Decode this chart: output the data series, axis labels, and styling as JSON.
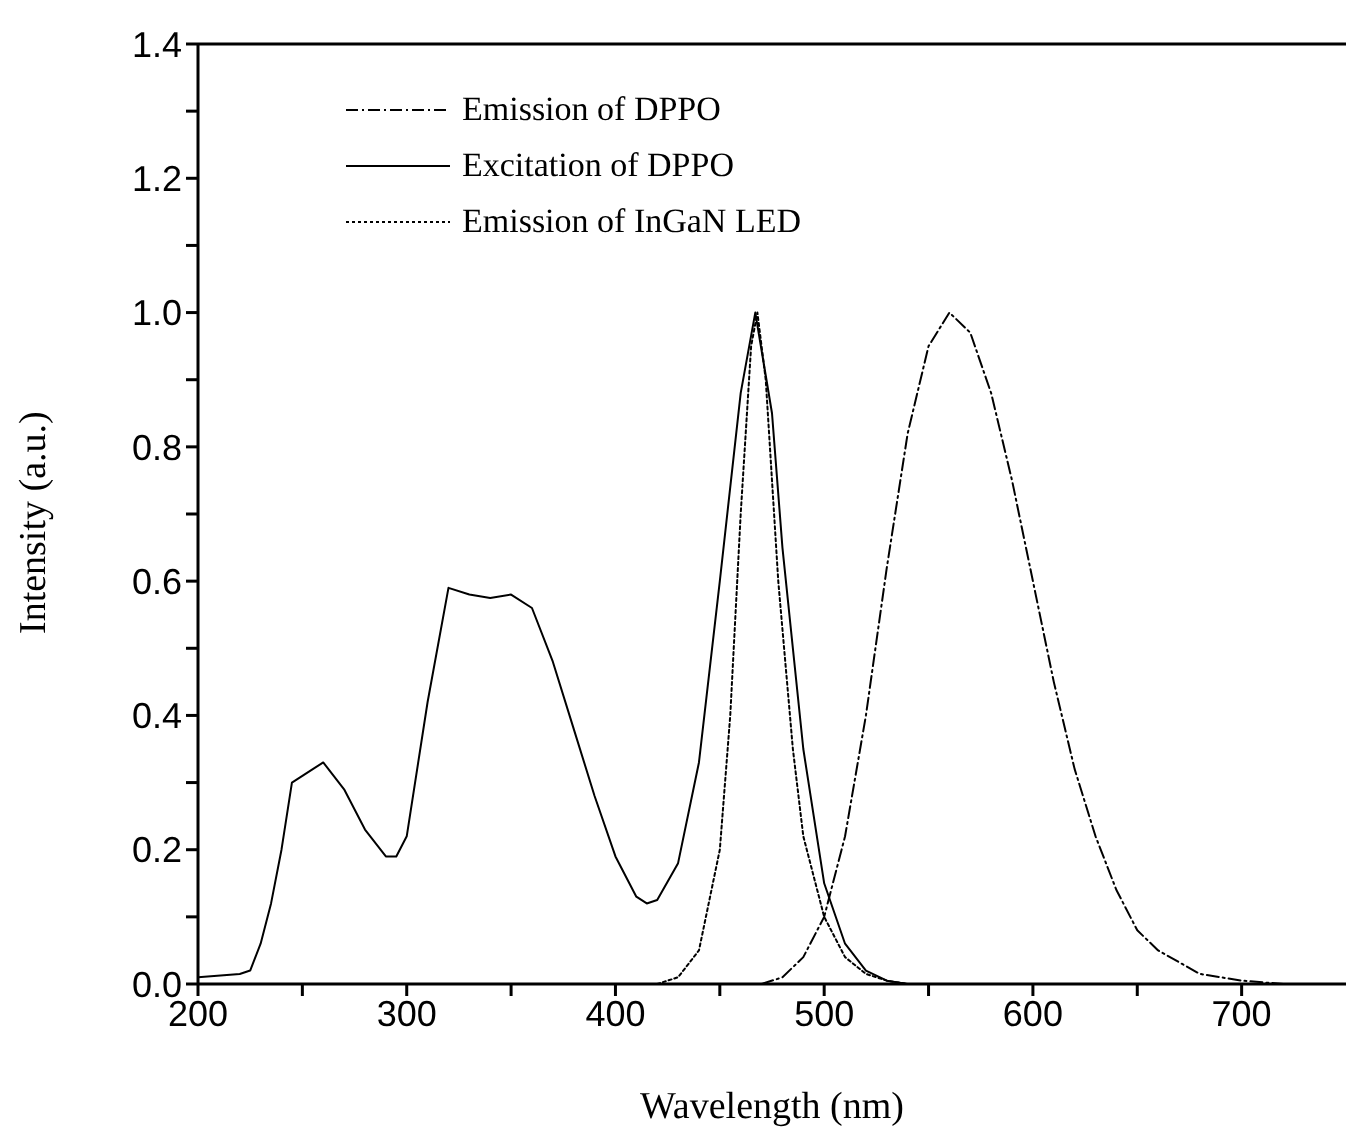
{
  "chart_data": {
    "type": "line",
    "xlabel": "Wavelength (nm)",
    "ylabel": "Intensity (a.u.)",
    "xlim": [
      200,
      750
    ],
    "xticks": [
      200,
      {
        "value": 250,
        "label": null
      },
      300,
      {
        "value": 350,
        "label": null
      },
      400,
      {
        "value": 450,
        "label": null
      },
      500,
      {
        "value": 550,
        "label": null
      },
      600,
      {
        "value": 650,
        "label": null
      },
      700
    ],
    "ylim": [
      0,
      1.4
    ],
    "yticks": [
      "0.0",
      {
        "value": 0.1,
        "label": null
      },
      0.2,
      {
        "value": 0.3,
        "label": null
      },
      0.4,
      {
        "value": 0.5,
        "label": null
      },
      0.6,
      {
        "value": 0.7,
        "label": null
      },
      0.8,
      {
        "value": 0.9,
        "label": null
      },
      {
        "value": 1,
        "label": "1.0"
      },
      {
        "value": 1.1,
        "label": null
      },
      1.2,
      {
        "value": 1.3,
        "label": null
      },
      1.4
    ],
    "grid": false,
    "legend": "top left",
    "marker": "none",
    "series": [
      {
        "name": "Emission of DPPO",
        "color": "#000000",
        "line_style": "dashed",
        "x": [
          470,
          480,
          490,
          500,
          510,
          520,
          530,
          540,
          550,
          560,
          570,
          580,
          590,
          600,
          610,
          620,
          630,
          640,
          650,
          660,
          680,
          700,
          720,
          750
        ],
        "values": [
          0,
          0.01,
          0.04,
          0.1,
          0.22,
          0.4,
          0.62,
          0.82,
          0.95,
          1.0,
          0.97,
          0.88,
          0.75,
          0.6,
          0.45,
          0.32,
          0.22,
          0.14,
          0.08,
          0.05,
          0.015,
          0.005,
          0,
          0
        ]
      },
      {
        "name": "Excitation of DPPO",
        "color": "#000000",
        "line_style": "solid",
        "x": [
          200,
          220,
          225,
          230,
          235,
          240,
          245,
          250,
          255,
          260,
          265,
          270,
          280,
          290,
          295,
          300,
          310,
          320,
          330,
          340,
          350,
          360,
          370,
          380,
          390,
          400,
          410,
          415,
          420,
          430,
          440,
          450,
          460,
          467,
          475,
          480,
          490,
          500,
          510,
          520,
          530,
          540
        ],
        "values": [
          0.01,
          0.015,
          0.02,
          0.06,
          0.12,
          0.2,
          0.3,
          0.31,
          0.32,
          0.33,
          0.31,
          0.29,
          0.23,
          0.19,
          0.19,
          0.22,
          0.42,
          0.59,
          0.58,
          0.575,
          0.58,
          0.56,
          0.48,
          0.38,
          0.28,
          0.19,
          0.13,
          0.12,
          0.125,
          0.18,
          0.33,
          0.6,
          0.88,
          1.0,
          0.85,
          0.65,
          0.35,
          0.15,
          0.06,
          0.02,
          0.005,
          0
        ]
      },
      {
        "name": "Emission of InGaN LED",
        "color": "#000000",
        "line_style": "dotted",
        "x": [
          420,
          430,
          440,
          450,
          455,
          460,
          465,
          468,
          472,
          478,
          485,
          490,
          500,
          510,
          520,
          530,
          540
        ],
        "values": [
          0,
          0.01,
          0.05,
          0.2,
          0.4,
          0.7,
          0.95,
          1.0,
          0.9,
          0.6,
          0.35,
          0.22,
          0.1,
          0.04,
          0.015,
          0.005,
          0
        ]
      }
    ]
  }
}
